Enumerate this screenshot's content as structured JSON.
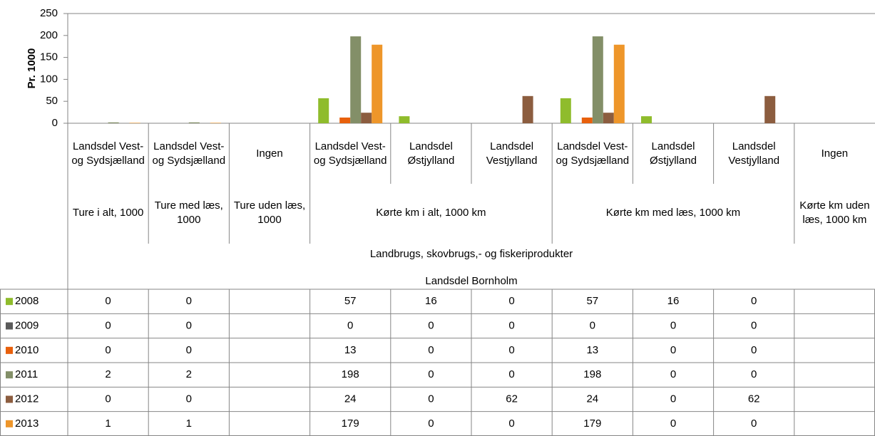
{
  "chart_data": {
    "type": "bar",
    "y_label": "Pr. 1000",
    "categories": [
      "Landsdel Vest- og Sydsjælland",
      "Landsdel Vest- og Sydsjælland",
      "Ingen",
      "Landsdel Vest- og Sydsjælland",
      "Landsdel Østjylland",
      "Landsdel Vestjylland",
      "Landsdel Vest- og Sydsjælland",
      "Landsdel Østjylland",
      "Landsdel Vestjylland",
      "Ingen"
    ],
    "measures": [
      "Ture i alt, 1000",
      "Ture med læs, 1000",
      "Ture uden læs, 1000",
      "Kørte km i alt, 1000 km",
      null,
      null,
      "Kørte km med læs, 1000 km",
      null,
      null,
      "Kørte km uden læs, 1000 km"
    ],
    "product": "Landbrugs, skovbrugs,- og fiskeriprodukter",
    "region": "Landsdel Bornholm",
    "series": [
      {
        "name": "2008",
        "color": "#8fbc2c",
        "values": [
          0,
          0,
          null,
          57,
          16,
          0,
          57,
          16,
          0,
          null
        ]
      },
      {
        "name": "2009",
        "color": "#5a5a5a",
        "values": [
          0,
          0,
          null,
          0,
          0,
          0,
          0,
          0,
          0,
          null
        ]
      },
      {
        "name": "2010",
        "color": "#e8600c",
        "values": [
          0,
          0,
          null,
          13,
          0,
          0,
          13,
          0,
          0,
          null
        ]
      },
      {
        "name": "2011",
        "color": "#838f68",
        "values": [
          2,
          2,
          null,
          198,
          0,
          0,
          198,
          0,
          0,
          null
        ]
      },
      {
        "name": "2012",
        "color": "#8c5d3f",
        "values": [
          0,
          0,
          null,
          24,
          0,
          62,
          24,
          0,
          62,
          null
        ]
      },
      {
        "name": "2013",
        "color": "#ee962a",
        "values": [
          1,
          1,
          null,
          179,
          0,
          0,
          179,
          0,
          0,
          null
        ]
      }
    ],
    "ylim": [
      0,
      250
    ],
    "yticks": [
      0,
      50,
      100,
      150,
      200,
      250
    ],
    "grid": false
  }
}
